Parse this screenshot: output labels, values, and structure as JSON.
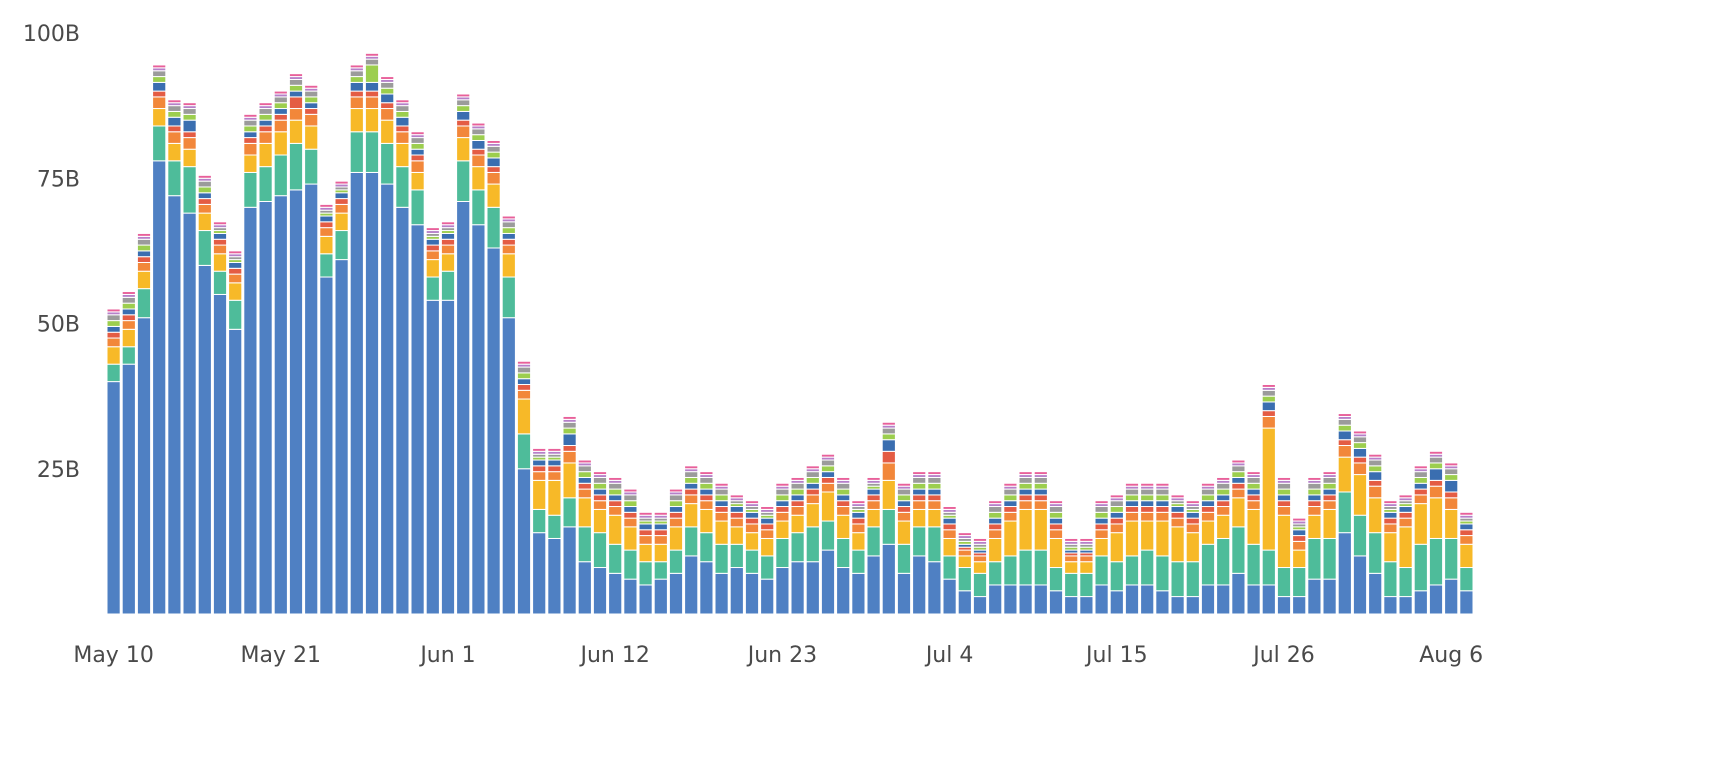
{
  "chart_data": {
    "type": "bar",
    "stacked": true,
    "title": "",
    "xlabel": "",
    "ylabel": "",
    "ylim": [
      0,
      100
    ],
    "y_unit": "B",
    "y_ticks": [
      25,
      50,
      75,
      100
    ],
    "y_tick_labels": [
      "25B",
      "50B",
      "75B",
      "100B"
    ],
    "grid": false,
    "legend": "none",
    "x_tick_labels": [
      {
        "index": 0,
        "label": "May 10"
      },
      {
        "index": 11,
        "label": "May 21"
      },
      {
        "index": 22,
        "label": "Jun 1"
      },
      {
        "index": 33,
        "label": "Jun 12"
      },
      {
        "index": 44,
        "label": "Jun 23"
      },
      {
        "index": 55,
        "label": "Jul 4"
      },
      {
        "index": 66,
        "label": "Jul 15"
      },
      {
        "index": 77,
        "label": "Jul 26"
      },
      {
        "index": 88,
        "label": "Aug 6"
      }
    ],
    "categories": [
      "May 10",
      "May 11",
      "May 12",
      "May 13",
      "May 14",
      "May 15",
      "May 16",
      "May 17",
      "May 18",
      "May 19",
      "May 20",
      "May 21",
      "May 22",
      "May 23",
      "May 24",
      "May 25",
      "May 26",
      "May 27",
      "May 28",
      "May 29",
      "May 30",
      "May 31",
      "Jun 1",
      "Jun 2",
      "Jun 3",
      "Jun 4",
      "Jun 5",
      "Jun 6",
      "Jun 7",
      "Jun 8",
      "Jun 9",
      "Jun 10",
      "Jun 11",
      "Jun 12",
      "Jun 13",
      "Jun 14",
      "Jun 15",
      "Jun 16",
      "Jun 17",
      "Jun 18",
      "Jun 19",
      "Jun 20",
      "Jun 21",
      "Jun 22",
      "Jun 23",
      "Jun 24",
      "Jun 25",
      "Jun 26",
      "Jun 27",
      "Jun 28",
      "Jun 29",
      "Jun 30",
      "Jul 1",
      "Jul 2",
      "Jul 3",
      "Jul 4",
      "Jul 5",
      "Jul 6",
      "Jul 7",
      "Jul 8",
      "Jul 9",
      "Jul 10",
      "Jul 11",
      "Jul 12",
      "Jul 13",
      "Jul 14",
      "Jul 15",
      "Jul 16",
      "Jul 17",
      "Jul 18",
      "Jul 19",
      "Jul 20",
      "Jul 21",
      "Jul 22",
      "Jul 23",
      "Jul 24",
      "Jul 25",
      "Jul 26",
      "Jul 27",
      "Jul 28",
      "Jul 29",
      "Jul 30",
      "Jul 31",
      "Aug 1",
      "Aug 2",
      "Aug 3",
      "Aug 4",
      "Aug 5",
      "Aug 6",
      "Aug 7"
    ],
    "series": [
      {
        "color": "#4f80c3",
        "values": [
          40,
          43,
          51,
          78,
          72,
          69,
          60,
          55,
          49,
          70,
          71,
          72,
          73,
          74,
          58,
          61,
          76,
          76,
          74,
          70,
          67,
          54,
          54,
          71,
          67,
          63,
          51,
          25,
          14,
          13,
          15,
          9,
          8,
          7,
          6,
          5,
          6,
          7,
          10,
          9,
          7,
          8,
          7,
          6,
          8,
          9,
          9,
          11,
          8,
          7,
          10,
          12,
          7,
          10,
          9,
          6,
          4,
          3,
          5,
          5,
          5,
          5,
          4,
          3,
          3,
          5,
          4,
          5,
          5,
          4,
          3,
          3,
          5,
          5,
          7,
          5,
          5,
          3,
          3,
          6,
          6,
          14,
          10,
          7,
          3,
          3,
          4,
          5,
          6,
          4
        ]
      },
      {
        "color": "#4ebc9a",
        "values": [
          3,
          3,
          5,
          6,
          6,
          8,
          6,
          4,
          5,
          6,
          6,
          7,
          8,
          6,
          4,
          5,
          7,
          7,
          7,
          7,
          6,
          4,
          5,
          7,
          6,
          7,
          7,
          6,
          4,
          4,
          5,
          6,
          6,
          5,
          5,
          4,
          3,
          4,
          5,
          5,
          5,
          4,
          4,
          4,
          5,
          5,
          6,
          5,
          5,
          4,
          5,
          6,
          5,
          5,
          6,
          4,
          4,
          4,
          4,
          5,
          6,
          6,
          4,
          4,
          4,
          5,
          5,
          5,
          6,
          6,
          6,
          6,
          7,
          8,
          8,
          7,
          6,
          5,
          5,
          7,
          7,
          7,
          7,
          7,
          6,
          5,
          8,
          8,
          7,
          4
        ]
      },
      {
        "color": "#f7b928",
        "values": [
          3,
          3,
          3,
          3,
          3,
          3,
          3,
          3,
          3,
          3,
          4,
          4,
          4,
          4,
          3,
          3,
          4,
          4,
          4,
          4,
          3,
          3,
          3,
          4,
          4,
          4,
          4,
          6,
          5,
          6,
          6,
          5,
          4,
          5,
          4,
          3,
          3,
          4,
          4,
          4,
          4,
          3,
          3,
          3,
          3,
          3,
          4,
          5,
          4,
          3,
          3,
          5,
          4,
          3,
          3,
          3,
          2,
          2,
          4,
          6,
          7,
          7,
          5,
          2,
          2,
          3,
          5,
          6,
          5,
          6,
          6,
          5,
          4,
          4,
          5,
          6,
          21,
          9,
          3,
          4,
          5,
          6,
          7,
          6,
          5,
          7,
          7,
          7,
          5,
          4
        ]
      },
      {
        "color": "#f2873a",
        "values": [
          1.5,
          1.5,
          1.5,
          2,
          2,
          2,
          1.5,
          1.5,
          1.5,
          2,
          2,
          2,
          2,
          2,
          1.5,
          1.5,
          2,
          2,
          2,
          2,
          2,
          1.5,
          1.5,
          2,
          2,
          2,
          1.5,
          1.5,
          1.5,
          1.5,
          2,
          1.5,
          1.5,
          1.5,
          1.5,
          1.5,
          1.5,
          1.5,
          1.5,
          1.5,
          1.5,
          1.5,
          1.5,
          1.5,
          1.5,
          1.5,
          1.5,
          1.5,
          1.5,
          1.5,
          1.5,
          3,
          1.5,
          1.5,
          1.5,
          1.5,
          1,
          1,
          1.5,
          1.5,
          1.5,
          1.5,
          1.5,
          1,
          1,
          1.5,
          1.5,
          1.5,
          1.5,
          1.5,
          1.5,
          1.5,
          1.5,
          1.5,
          1.5,
          1.5,
          2,
          1.5,
          1.5,
          1.5,
          1.5,
          2,
          2,
          2,
          1.5,
          1.5,
          1.5,
          2,
          2,
          1.5
        ]
      },
      {
        "color": "#e45c44",
        "values": [
          1,
          1,
          1,
          1,
          1,
          1,
          1,
          1,
          1,
          1,
          1,
          1,
          2,
          1,
          1,
          1,
          1,
          1,
          1,
          1,
          1,
          1,
          1,
          1,
          1,
          1,
          1,
          1,
          1,
          1,
          1,
          1,
          1,
          1,
          1,
          1,
          1,
          1,
          1,
          1,
          1,
          1,
          1,
          1,
          1,
          1,
          1,
          1,
          1,
          1,
          1,
          2,
          1,
          1,
          1,
          1,
          0.5,
          0.5,
          1,
          1,
          1,
          1,
          1,
          0.5,
          0.5,
          1,
          1,
          1,
          1,
          1,
          1,
          1,
          1,
          1,
          1,
          1,
          1,
          1,
          1,
          1,
          1,
          1,
          1,
          1,
          1,
          1,
          1,
          1,
          1,
          1
        ]
      },
      {
        "color": "#3a6eb0",
        "values": [
          1,
          1,
          1,
          1.5,
          1.5,
          2,
          1,
          1,
          1,
          1,
          1,
          1,
          1,
          1,
          1,
          1,
          1.5,
          1.5,
          1.5,
          1.5,
          1,
          1,
          1,
          1.5,
          1.5,
          1.5,
          1,
          1,
          1,
          1,
          2,
          1,
          1,
          1,
          1,
          1,
          1,
          1,
          1,
          1,
          1,
          1,
          1,
          1,
          1,
          1,
          1,
          1,
          1,
          1,
          1,
          2,
          1,
          1,
          1,
          1,
          0.5,
          0.5,
          1,
          1,
          1,
          1,
          1,
          0.5,
          0.5,
          1,
          1,
          1,
          1,
          1,
          1,
          1,
          1,
          1,
          1,
          1,
          1.5,
          1,
          1,
          1,
          1,
          1.5,
          1.5,
          1.5,
          1,
          1,
          1,
          2,
          2,
          1
        ]
      },
      {
        "color": "#9cce4e",
        "values": [
          1,
          1,
          1,
          1,
          1,
          1,
          1,
          0.5,
          0.5,
          1,
          1,
          1,
          1,
          1,
          0.5,
          0.5,
          1,
          3,
          1,
          1,
          1,
          0.5,
          0.5,
          1,
          1,
          1,
          1,
          1,
          0.5,
          0.5,
          1,
          1,
          1,
          1,
          1,
          0.5,
          0.5,
          1,
          1,
          1,
          1,
          0.5,
          0.5,
          0.5,
          1,
          1,
          1,
          1,
          1,
          0.5,
          0.5,
          1,
          1,
          1,
          1,
          0.5,
          0.5,
          0.5,
          1,
          1,
          1,
          1,
          1,
          0.5,
          0.5,
          1,
          1,
          1,
          1,
          1,
          0.5,
          0.5,
          1,
          1,
          1,
          1,
          1,
          1,
          0.5,
          1,
          1,
          1,
          1,
          1,
          0.5,
          0.5,
          1,
          1,
          1,
          0.5
        ]
      },
      {
        "color": "#9b9b9b",
        "values": [
          1,
          1,
          1,
          1,
          1,
          1,
          1,
          0.5,
          0.5,
          1,
          1,
          1,
          1,
          1,
          0.5,
          0.5,
          1,
          1,
          1,
          1,
          1,
          0.5,
          0.5,
          1,
          1,
          1,
          1,
          1,
          0.5,
          0.5,
          1,
          1,
          1,
          1,
          1,
          0.5,
          0.5,
          1,
          1,
          1,
          1,
          0.5,
          0.5,
          0.5,
          1,
          1,
          1,
          1,
          1,
          0.5,
          0.5,
          1,
          1,
          1,
          1,
          0.5,
          0.5,
          0.5,
          1,
          1,
          1,
          1,
          1,
          0.5,
          0.5,
          1,
          1,
          1,
          1,
          1,
          0.5,
          0.5,
          1,
          1,
          1,
          1,
          1,
          1,
          0.5,
          1,
          1,
          1,
          1,
          1,
          0.5,
          0.5,
          1,
          1,
          1,
          0.5
        ]
      },
      {
        "color": "#b680c9",
        "values": [
          0.5,
          0.5,
          0.5,
          0.5,
          0.5,
          0.5,
          0.5,
          0.5,
          0.5,
          0.5,
          0.5,
          0.5,
          0.5,
          0.5,
          0.5,
          0.5,
          0.5,
          0.5,
          0.5,
          0.5,
          0.5,
          0.5,
          0.5,
          0.5,
          0.5,
          0.5,
          0.5,
          0.5,
          0.5,
          0.5,
          0.5,
          0.5,
          0.5,
          0.5,
          0.5,
          0.5,
          0.5,
          0.5,
          0.5,
          0.5,
          0.5,
          0.5,
          0.5,
          0.5,
          0.5,
          0.5,
          0.5,
          0.5,
          0.5,
          0.5,
          0.5,
          0.5,
          0.5,
          0.5,
          0.5,
          0.5,
          0.5,
          0.5,
          0.5,
          0.5,
          0.5,
          0.5,
          0.5,
          0.5,
          0.5,
          0.5,
          0.5,
          0.5,
          0.5,
          0.5,
          0.5,
          0.5,
          0.5,
          0.5,
          0.5,
          0.5,
          0.5,
          0.5,
          0.5,
          0.5,
          0.5,
          0.5,
          0.5,
          0.5,
          0.5,
          0.5,
          0.5,
          0.5,
          0.5,
          0.5
        ]
      },
      {
        "color": "#e8609a",
        "values": [
          0.5,
          0.5,
          0.5,
          0.5,
          0.5,
          0.5,
          0.5,
          0.5,
          0.5,
          0.5,
          0.5,
          0.5,
          0.5,
          0.5,
          0.5,
          0.5,
          0.5,
          0.5,
          0.5,
          0.5,
          0.5,
          0.5,
          0.5,
          0.5,
          0.5,
          0.5,
          0.5,
          0.5,
          0.5,
          0.5,
          0.5,
          0.5,
          0.5,
          0.5,
          0.5,
          0.5,
          0.5,
          0.5,
          0.5,
          0.5,
          0.5,
          0.5,
          0.5,
          0.5,
          0.5,
          0.5,
          0.5,
          0.5,
          0.5,
          0.5,
          0.5,
          0.5,
          0.5,
          0.5,
          0.5,
          0.5,
          0.5,
          0.5,
          0.5,
          0.5,
          0.5,
          0.5,
          0.5,
          0.5,
          0.5,
          0.5,
          0.5,
          0.5,
          0.5,
          0.5,
          0.5,
          0.5,
          0.5,
          0.5,
          0.5,
          0.5,
          0.5,
          0.5,
          0.5,
          0.5,
          0.5,
          0.5,
          0.5,
          0.5,
          0.5,
          0.5,
          0.5,
          0.5,
          0.5,
          0.5
        ]
      }
    ]
  }
}
